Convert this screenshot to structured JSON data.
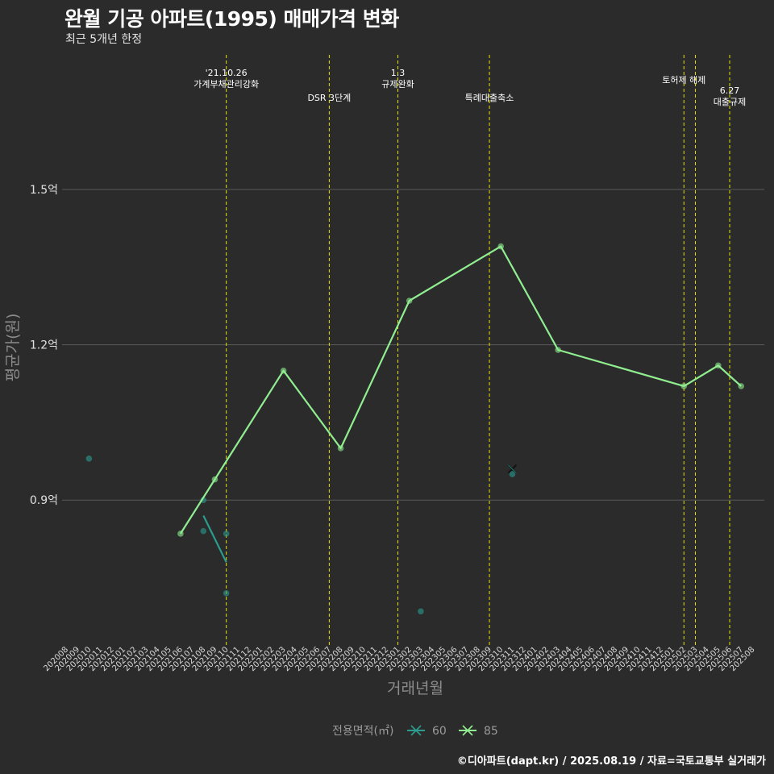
{
  "header": {
    "title": "완월 기공 아파트(1995) 매매가격 변화",
    "subtitle": "최근 5개년 한정"
  },
  "footer": {
    "caption": "©디아파트(dapt.kr) / 2025.08.19 / 자료=국토교통부 실거래가"
  },
  "colors": {
    "background": "#2b2b2b",
    "grid": "#5a5a5a",
    "event_line": "#e8e000",
    "series_60": "#2a9d8f",
    "series_85": "#90ee90"
  },
  "chart_data": {
    "type": "line",
    "title": "완월 기공 아파트(1995) 매매가격 변화",
    "subtitle": "최근 5개년 한정",
    "xlabel": "거래년월",
    "ylabel": "평균가(원)",
    "ylim": [
      0.62,
      1.76
    ],
    "grid": true,
    "legend_title": "전용면적(㎡)",
    "legend_position": "bottom",
    "x_categories": [
      "202008",
      "202009",
      "202010",
      "202011",
      "202012",
      "202101",
      "202102",
      "202103",
      "202104",
      "202105",
      "202106",
      "202107",
      "202108",
      "202109",
      "202110",
      "202111",
      "202112",
      "202201",
      "202202",
      "202203",
      "202204",
      "202205",
      "202206",
      "202207",
      "202208",
      "202209",
      "202210",
      "202211",
      "202212",
      "202301",
      "202302",
      "202303",
      "202304",
      "202305",
      "202306",
      "202307",
      "202308",
      "202309",
      "202310",
      "202311",
      "202312",
      "202401",
      "202402",
      "202403",
      "202404",
      "202405",
      "202406",
      "202407",
      "202408",
      "202409",
      "202410",
      "202411",
      "202412",
      "202501",
      "202502",
      "202503",
      "202504",
      "202505",
      "202506",
      "202507",
      "202508"
    ],
    "y_ticks": [
      {
        "value": 0.9,
        "label": "0.9억"
      },
      {
        "value": 1.2,
        "label": "1.2억"
      },
      {
        "value": 1.5,
        "label": "1.5억"
      }
    ],
    "series": [
      {
        "name": "60",
        "color": "#2a9d8f",
        "line": [
          {
            "x": "202108",
            "y": 0.87
          },
          {
            "x": "202110",
            "y": 0.78
          }
        ],
        "points": [
          {
            "x": "202010",
            "y": 0.98
          },
          {
            "x": "202108",
            "y": 0.9
          },
          {
            "x": "202108",
            "y": 0.84
          },
          {
            "x": "202110",
            "y": 0.835
          },
          {
            "x": "202110",
            "y": 0.72
          },
          {
            "x": "202303",
            "y": 0.685
          },
          {
            "x": "202311",
            "y": 0.95
          }
        ]
      },
      {
        "name": "85",
        "color": "#90ee90",
        "line": [
          {
            "x": "202106",
            "y": 0.835
          },
          {
            "x": "202109",
            "y": 0.94
          },
          {
            "x": "202203",
            "y": 1.15
          },
          {
            "x": "202208",
            "y": 1.0
          },
          {
            "x": "202302",
            "y": 1.285
          },
          {
            "x": "202310",
            "y": 1.39
          },
          {
            "x": "202403",
            "y": 1.19
          },
          {
            "x": "202502",
            "y": 1.12
          },
          {
            "x": "202505",
            "y": 1.16
          },
          {
            "x": "202507",
            "y": 1.12
          }
        ],
        "points": [
          {
            "x": "202106",
            "y": 0.835
          },
          {
            "x": "202109",
            "y": 0.94
          },
          {
            "x": "202203",
            "y": 1.15
          },
          {
            "x": "202208",
            "y": 1.0
          },
          {
            "x": "202302",
            "y": 1.285
          },
          {
            "x": "202310",
            "y": 1.39
          },
          {
            "x": "202403",
            "y": 1.19
          },
          {
            "x": "202502",
            "y": 1.12
          },
          {
            "x": "202505",
            "y": 1.16
          },
          {
            "x": "202507",
            "y": 1.12
          }
        ]
      }
    ],
    "markers": [
      {
        "series": "60",
        "x": "202311",
        "y": 0.96,
        "shape": "x"
      }
    ],
    "events": [
      {
        "x": "202110",
        "lines": [
          "'21.10.26",
          "가계부채관리강화"
        ],
        "level": 1
      },
      {
        "x": "202207",
        "lines": [
          "DSR 3단계"
        ],
        "level": 3
      },
      {
        "x": "202301",
        "lines": [
          "1.3",
          "규제완화"
        ],
        "level": 1
      },
      {
        "x": "202309",
        "lines": [
          "특례대출축소"
        ],
        "level": 3
      },
      {
        "x": "202502",
        "lines": [
          "토허제 해제"
        ],
        "level": 2
      },
      {
        "x": "202503",
        "lines": [],
        "level": 2
      },
      {
        "x": "202506",
        "lines": [
          "6.27",
          "대출규제"
        ],
        "level": 4
      }
    ]
  }
}
